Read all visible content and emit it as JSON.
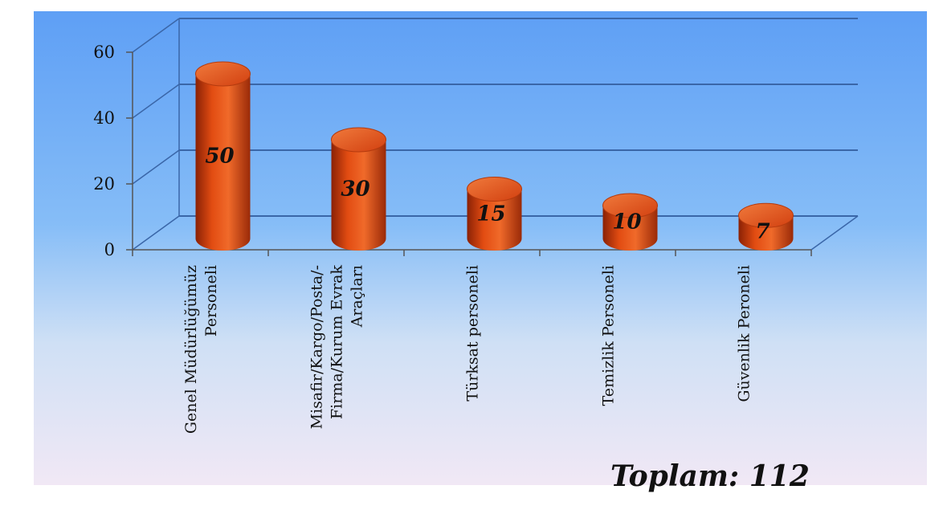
{
  "chart_data": {
    "type": "bar",
    "style": "3d-cylinder",
    "categories": [
      [
        "Genel Müdürlüğümüz",
        "Personeli"
      ],
      [
        "Misafir/Kargo/Posta/-",
        "Firma/Kurum Evrak",
        "Araçları"
      ],
      [
        "Türksat personeli"
      ],
      [
        "Temizlik Personeli"
      ],
      [
        "Güvenlik Peroneli"
      ]
    ],
    "values": [
      50,
      30,
      15,
      10,
      7
    ],
    "data_labels": [
      "50",
      "30",
      "15",
      "10",
      "7"
    ],
    "ylim": [
      0,
      60
    ],
    "yticks": [
      "0",
      "20",
      "40",
      "60"
    ],
    "grid": true,
    "bar_color": "#e04410"
  },
  "total_label": "Toplam: 112"
}
